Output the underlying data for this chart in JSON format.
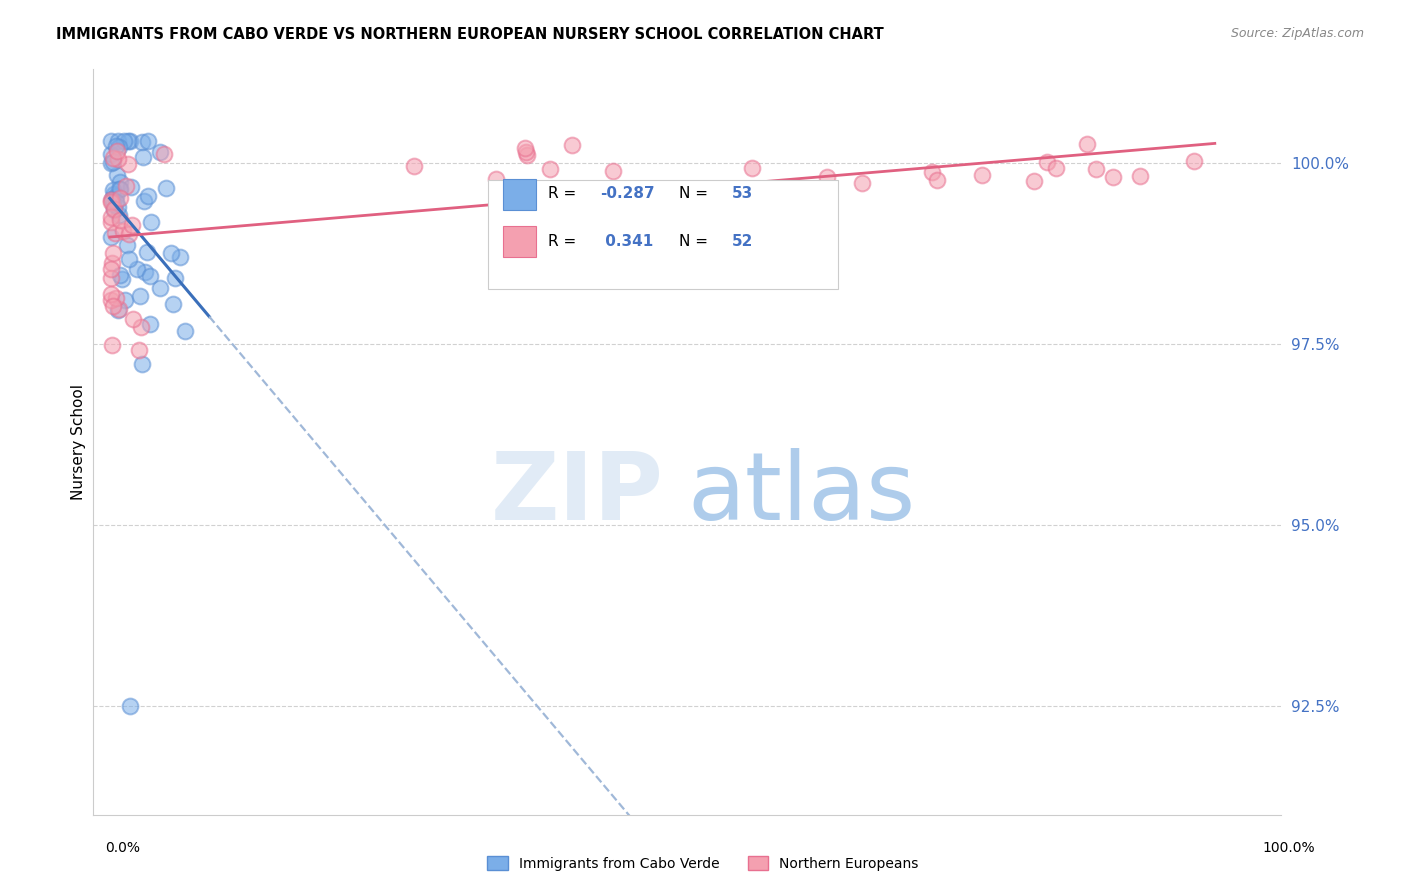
{
  "title": "IMMIGRANTS FROM CABO VERDE VS NORTHERN EUROPEAN NURSERY SCHOOL CORRELATION CHART",
  "source": "Source: ZipAtlas.com",
  "ylabel": "Nursery School",
  "y_ticks": [
    92.5,
    95.0,
    97.5,
    100.0
  ],
  "y_tick_labels": [
    "92.5%",
    "95.0%",
    "97.5%",
    "100.0%"
  ],
  "legend_label_cabo": "Immigrants from Cabo Verde",
  "legend_label_northern": "Northern Europeans",
  "cabo_verde_R": -0.287,
  "northern_R": 0.341,
  "cabo_verde_N": 53,
  "northern_N": 52,
  "cabo_color": "#7baee8",
  "cabo_edge_color": "#5a8fd4",
  "cabo_line_color": "#3a6fba",
  "cabo_dash_color": "#a0b8d8",
  "north_color": "#f4a0b0",
  "north_edge_color": "#e87090",
  "north_line_color": "#e06080",
  "watermark_zip_color": "#dce8f5",
  "watermark_atlas_color": "#a0c4e8",
  "y_tick_color": "#4472c4",
  "r_value_color": "#4472c4"
}
